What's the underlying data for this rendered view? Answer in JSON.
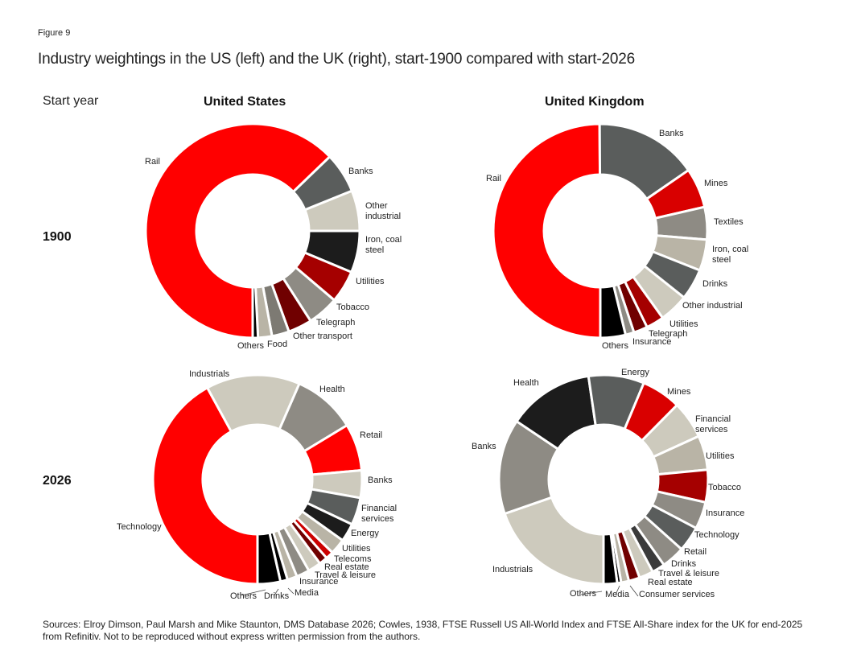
{
  "figure_label": "Figure 9",
  "title": "Industry weightings in the US (left) and the UK (right), start-1900 compared with start-2026",
  "start_year_label": "Start year",
  "columns": {
    "us": "United States",
    "uk": "United Kingdom"
  },
  "rows": {
    "y1900": "1900",
    "y2026": "2026"
  },
  "sources": "Sources: Elroy Dimson, Paul Marsh and Mike Staunton, DMS Database 2026; Cowles, 1938, FTSE Russell US All-World Index and FTSE All-Share index for the UK for end-2025 from Refinitiv. Not to be reproduced without express written permission from the authors.",
  "colors": {
    "red": "#FF0000",
    "mid_red": "#D90000",
    "dark_red": "#A50000",
    "deep_red": "#700000",
    "dark_gray": "#5A5D5C",
    "gray": "#8E8B84",
    "beige": "#CDCABD",
    "tan": "#B9B4A6",
    "black": "#1C1C1C",
    "pure_black": "#000000"
  },
  "chart_data": [
    {
      "type": "pie",
      "variant": "donut",
      "country": "United States",
      "year": "1900",
      "direction": "clockwise from bottom",
      "slices": [
        {
          "label": "Rail",
          "value": 62.8,
          "color": "#FF0000"
        },
        {
          "label": "Banks",
          "value": 6.1,
          "color": "#5A5D5C"
        },
        {
          "label": "Other industrial",
          "value": 6.1,
          "color": "#CDCABD"
        },
        {
          "label": "Iron, coal steel",
          "value": 6.3,
          "color": "#1C1C1C"
        },
        {
          "label": "Utilities",
          "value": 4.9,
          "color": "#A50000"
        },
        {
          "label": "Tobacco",
          "value": 4.7,
          "color": "#8E8B84"
        },
        {
          "label": "Telegraph",
          "value": 3.6,
          "color": "#700000"
        },
        {
          "label": "Other transport",
          "value": 2.6,
          "color": "#7D7A73"
        },
        {
          "label": "Food",
          "value": 2.1,
          "color": "#B9B4A6"
        },
        {
          "label": "Others",
          "value": 0.8,
          "color": "#000000"
        }
      ]
    },
    {
      "type": "pie",
      "variant": "donut",
      "country": "United Kingdom",
      "year": "1900",
      "direction": "clockwise from bottom",
      "slices": [
        {
          "label": "Rail",
          "value": 49.9,
          "color": "#FF0000"
        },
        {
          "label": "Banks",
          "value": 15.5,
          "color": "#5A5D5C"
        },
        {
          "label": "Mines",
          "value": 6.0,
          "color": "#D90000"
        },
        {
          "label": "Textiles",
          "value": 4.9,
          "color": "#8E8B84"
        },
        {
          "label": "Iron, coal steel",
          "value": 4.7,
          "color": "#B9B4A6"
        },
        {
          "label": "Drinks",
          "value": 4.7,
          "color": "#5A5D5C"
        },
        {
          "label": "Other industrial",
          "value": 4.4,
          "color": "#CDCABD"
        },
        {
          "label": "Utilities",
          "value": 2.7,
          "color": "#A50000"
        },
        {
          "label": "Telegraph",
          "value": 2.1,
          "color": "#700000"
        },
        {
          "label": "Insurance",
          "value": 1.3,
          "color": "#8E8B84"
        },
        {
          "label": "Others",
          "value": 3.8,
          "color": "#000000"
        }
      ]
    },
    {
      "type": "pie",
      "variant": "donut",
      "country": "United States",
      "year": "2026",
      "direction": "clockwise from bottom",
      "slices": [
        {
          "label": "Technology",
          "value": 41.7,
          "color": "#FF0000"
        },
        {
          "label": "Industrials",
          "value": 14.4,
          "color": "#CDCABD"
        },
        {
          "label": "Health",
          "value": 9.7,
          "color": "#8E8B84"
        },
        {
          "label": "Retail",
          "value": 7.2,
          "color": "#FF0000"
        },
        {
          "label": "Banks",
          "value": 4.2,
          "color": "#CDCABD"
        },
        {
          "label": "Financial services",
          "value": 4.2,
          "color": "#5A5D5C"
        },
        {
          "label": "Energy",
          "value": 2.8,
          "color": "#1C1C1C"
        },
        {
          "label": "Utilities",
          "value": 2.4,
          "color": "#B9B4A6"
        },
        {
          "label": "Telecoms",
          "value": 1.2,
          "color": "#CC0000"
        },
        {
          "label": "Real estate",
          "value": 1.3,
          "color": "#700000"
        },
        {
          "label": "Travel & leisure",
          "value": 2.0,
          "color": "#CDCABD"
        },
        {
          "label": "Insurance",
          "value": 2.0,
          "color": "#8E8B84"
        },
        {
          "label": "Media",
          "value": 1.5,
          "color": "#B9B4A6"
        },
        {
          "label": "Drinks",
          "value": 1.1,
          "color": "#000000"
        },
        {
          "label": "Others",
          "value": 3.5,
          "color": "#000000"
        }
      ]
    },
    {
      "type": "pie",
      "variant": "donut",
      "country": "United Kingdom",
      "year": "2026",
      "direction": "clockwise from bottom",
      "slices": [
        {
          "label": "Industrials",
          "value": 19.7,
          "color": "#CDCABD"
        },
        {
          "label": "Banks",
          "value": 14.7,
          "color": "#8E8B84"
        },
        {
          "label": "Health",
          "value": 13.3,
          "color": "#1C1C1C"
        },
        {
          "label": "Energy",
          "value": 8.6,
          "color": "#5A5D5C"
        },
        {
          "label": "Mines",
          "value": 6.1,
          "color": "#D90000"
        },
        {
          "label": "Financial services",
          "value": 5.8,
          "color": "#CDCABD"
        },
        {
          "label": "Utilities",
          "value": 5.3,
          "color": "#B9B4A6"
        },
        {
          "label": "Tobacco",
          "value": 5.0,
          "color": "#A50000"
        },
        {
          "label": "Insurance",
          "value": 4.2,
          "color": "#8E8B84"
        },
        {
          "label": "Technology",
          "value": 3.9,
          "color": "#5A5D5C"
        },
        {
          "label": "Retail",
          "value": 3.6,
          "color": "#8E8B84"
        },
        {
          "label": "Drinks",
          "value": 2.0,
          "color": "#3A3A3A"
        },
        {
          "label": "Travel & leisure",
          "value": 2.2,
          "color": "#CDCABD"
        },
        {
          "label": "Real estate",
          "value": 1.7,
          "color": "#700000"
        },
        {
          "label": "Consumer services",
          "value": 1.2,
          "color": "#B9B4A6"
        },
        {
          "label": "Media",
          "value": 0.6,
          "color": "#000000"
        },
        {
          "label": "Others",
          "value": 2.1,
          "color": "#000000"
        }
      ]
    }
  ]
}
